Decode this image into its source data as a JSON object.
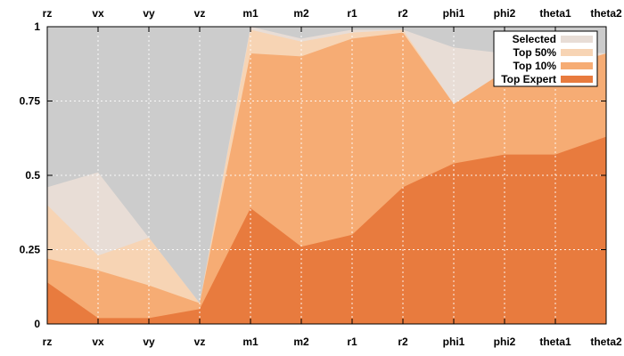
{
  "chart_data": {
    "type": "area",
    "categories": [
      "rz",
      "vx",
      "vy",
      "vz",
      "m1",
      "m2",
      "r1",
      "r2",
      "phi1",
      "phi2",
      "theta1",
      "theta2"
    ],
    "ylim": [
      0,
      1
    ],
    "yticks": [
      0,
      0.25,
      0.5,
      0.75,
      1
    ],
    "ytick_labels": [
      "0",
      "0.25",
      "0.5",
      "0.75",
      "1"
    ],
    "grid": true,
    "legend_position": "top-right",
    "background_color": "#cccccc",
    "series": [
      {
        "name": "Selected",
        "color": "#e8ddd6",
        "values": [
          0.46,
          0.51,
          0.29,
          0.07,
          1.0,
          0.96,
          0.99,
          0.99,
          0.93,
          0.91,
          0.92,
          0.91
        ]
      },
      {
        "name": "Top 50%",
        "color": "#f7d4b4",
        "values": [
          0.4,
          0.23,
          0.29,
          0.07,
          0.99,
          0.95,
          0.98,
          0.99,
          0.74,
          0.85,
          0.86,
          0.91
        ]
      },
      {
        "name": "Top 10%",
        "color": "#f6ac74",
        "values": [
          0.22,
          0.18,
          0.13,
          0.07,
          0.91,
          0.9,
          0.96,
          0.98,
          0.74,
          0.85,
          0.86,
          0.91
        ]
      },
      {
        "name": "Top Expert",
        "color": "#e87b3e",
        "values": [
          0.14,
          0.02,
          0.02,
          0.05,
          0.39,
          0.26,
          0.3,
          0.46,
          0.54,
          0.57,
          0.57,
          0.63
        ]
      }
    ]
  }
}
